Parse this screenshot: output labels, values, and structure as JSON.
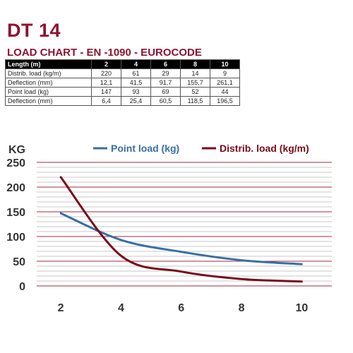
{
  "title": "DT 14",
  "subtitle": "LOAD CHART - EN -1090 - EUROCODE",
  "table": {
    "header_label": "Length (m)",
    "columns": [
      "2",
      "4",
      "6",
      "8",
      "10"
    ],
    "rows": [
      {
        "label": "Distrib. load (kg/m)",
        "values": [
          "220",
          "61",
          "29",
          "14",
          "9"
        ]
      },
      {
        "label": "Deflection (mm)",
        "values": [
          "12,1",
          "41,5",
          "91,7",
          "155,7",
          "261,1"
        ]
      },
      {
        "label": "Point load (kg)",
        "values": [
          "147",
          "93",
          "69",
          "52",
          "44"
        ]
      },
      {
        "label": "Deflection (mm)",
        "values": [
          "6,4",
          "25,4",
          "60,5",
          "118,5",
          "196,5"
        ]
      }
    ]
  },
  "chart_data": {
    "type": "line",
    "ylabel": "KG",
    "xlabel": "",
    "x": [
      2,
      4,
      6,
      8,
      10
    ],
    "xticks": [
      2,
      4,
      6,
      8,
      10
    ],
    "yticks": [
      0,
      50,
      100,
      150,
      200,
      250
    ],
    "xlim": [
      1.2,
      11
    ],
    "ylim": [
      0,
      250
    ],
    "grid": true,
    "legend_position": "top",
    "series": [
      {
        "name": "Point load (kg)",
        "color": "#3a6ea5",
        "values": [
          147,
          93,
          69,
          52,
          44
        ]
      },
      {
        "name": "Distrib. load (kg/m)",
        "color": "#7a0a1a",
        "values": [
          220,
          61,
          29,
          14,
          9
        ]
      }
    ],
    "major_grid_color": "#a0283c",
    "minor_grid_color": "#c8c8c8"
  }
}
